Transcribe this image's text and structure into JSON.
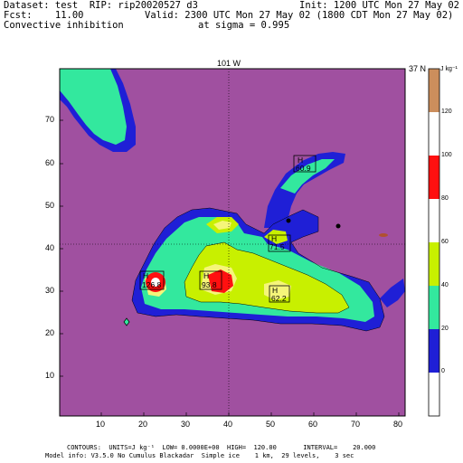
{
  "header": {
    "dataset": "Dataset: test  RIP: rip20020527 d3",
    "init": "Init: 1200 UTC Mon 27 May 02",
    "fcst": "Fcst:    11.00",
    "valid": "Valid: 2300 UTC Mon 27 May 02 (1800 CDT Mon 27 May 02)",
    "field": "Convective inhibition",
    "level": "at sigma = 0.995"
  },
  "plot": {
    "top_label": "101 W",
    "right_label": "37 N",
    "x_ticks": [
      "10",
      "20",
      "30",
      "40",
      "50",
      "60",
      "70",
      "80"
    ],
    "y_ticks": [
      "10",
      "20",
      "30",
      "40",
      "50",
      "60",
      "70"
    ],
    "highs": [
      {
        "label": "H",
        "value": "126.8"
      },
      {
        "label": "H",
        "value": "93.8"
      },
      {
        "label": "H",
        "value": "71.5"
      },
      {
        "label": "H",
        "value": "60.9"
      },
      {
        "label": "H",
        "value": "62.2"
      }
    ]
  },
  "colorbar": {
    "units": "J kg⁻¹",
    "levels": [
      "0",
      "20",
      "40",
      "60",
      "80",
      "100",
      "120"
    ],
    "colors": [
      "#ffffff",
      "#1f1fd6",
      "#33e89e",
      "#c8f000",
      "#ff1010",
      "#ffffff",
      "#cc8e5c"
    ]
  },
  "field_colors": {
    "background": "#a050a0",
    "blue": "#1f1fd6",
    "cyan": "#33e89e",
    "lime": "#c8f000",
    "yellow": "#f5f57a",
    "red": "#ff1010",
    "white": "#ffffff"
  },
  "footer": {
    "line1": "CONTOURS:  UNITS=J kg⁻¹  LOW= 0.0000E+00  HIGH=  120.00       INTERVAL=    20.000",
    "line2": "Model info: V3.5.0 No Cumulus Blackadar  Simple ice    1 km,  29 levels,    3 sec"
  }
}
